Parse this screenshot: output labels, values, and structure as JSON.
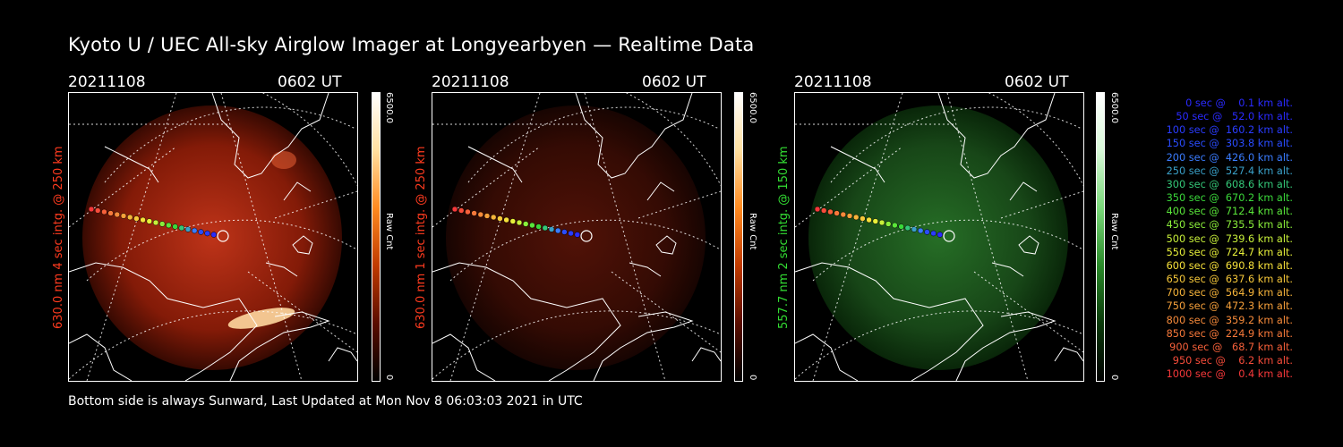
{
  "title": "Kyoto U / UEC All-sky Airglow Imager at Longyearbyen — Realtime Data",
  "panels": [
    {
      "date": "20211108",
      "time": "0602 UT",
      "side_label": "630.0 nm 4 sec intg. @ 250 km",
      "label_color": "#ff3b1f",
      "colorbar_max": "6500.0",
      "colorbar_min": "0",
      "colorbar_label": "Raw Cnt"
    },
    {
      "date": "20211108",
      "time": "0602 UT",
      "side_label": "630.0 nm 1 sec intg. @ 250 km",
      "label_color": "#ff3b1f",
      "colorbar_max": "6500.0",
      "colorbar_min": "0",
      "colorbar_label": "Raw Cnt"
    },
    {
      "date": "20211108",
      "time": "0602 UT",
      "side_label": "557.7 nm 2 sec intg. @ 150 km",
      "label_color": "#33dd33",
      "colorbar_max": "6500.0",
      "colorbar_min": "0",
      "colorbar_label": "Raw Cnt"
    }
  ],
  "footer": "Bottom side is always Sunward, Last Updated at Mon Nov  8 06:03:03 2021 in UTC",
  "legend": [
    {
      "text": "   0 sec @    0.1 km alt.",
      "color": "#2a2aff"
    },
    {
      "text": "  50 sec @   52.0 km alt.",
      "color": "#2a2aff"
    },
    {
      "text": " 100 sec @  160.2 km alt.",
      "color": "#2a3cff"
    },
    {
      "text": " 150 sec @  303.8 km alt.",
      "color": "#2a4cff"
    },
    {
      "text": " 200 sec @  426.0 km alt.",
      "color": "#3a7cff"
    },
    {
      "text": " 250 sec @  527.4 km alt.",
      "color": "#3aa0c8"
    },
    {
      "text": " 300 sec @  608.6 km alt.",
      "color": "#34c878"
    },
    {
      "text": " 350 sec @  670.2 km alt.",
      "color": "#3ad83a"
    },
    {
      "text": " 400 sec @  712.4 km alt.",
      "color": "#5ae63a"
    },
    {
      "text": " 450 sec @  735.5 km alt.",
      "color": "#8aee3a"
    },
    {
      "text": " 500 sec @  739.6 km alt.",
      "color": "#c8f03a"
    },
    {
      "text": " 550 sec @  724.7 km alt.",
      "color": "#e8f03a"
    },
    {
      "text": " 600 sec @  690.8 km alt.",
      "color": "#f6e03a"
    },
    {
      "text": " 650 sec @  637.6 km alt.",
      "color": "#f6c83a"
    },
    {
      "text": " 700 sec @  564.9 km alt.",
      "color": "#f6b43a"
    },
    {
      "text": " 750 sec @  472.3 km alt.",
      "color": "#f6a03a"
    },
    {
      "text": " 800 sec @  359.2 km alt.",
      "color": "#f68a3a"
    },
    {
      "text": " 850 sec @  224.9 km alt.",
      "color": "#f6783a"
    },
    {
      "text": " 900 sec @   68.7 km alt.",
      "color": "#f6603a"
    },
    {
      "text": " 950 sec @    6.2 km alt.",
      "color": "#f64c3a"
    },
    {
      "text": "1000 sec @    0.4 km alt.",
      "color": "#f6383a"
    }
  ],
  "colors": {
    "red_glow": "#b52a0a",
    "green_glow": "#1f6a1f"
  }
}
